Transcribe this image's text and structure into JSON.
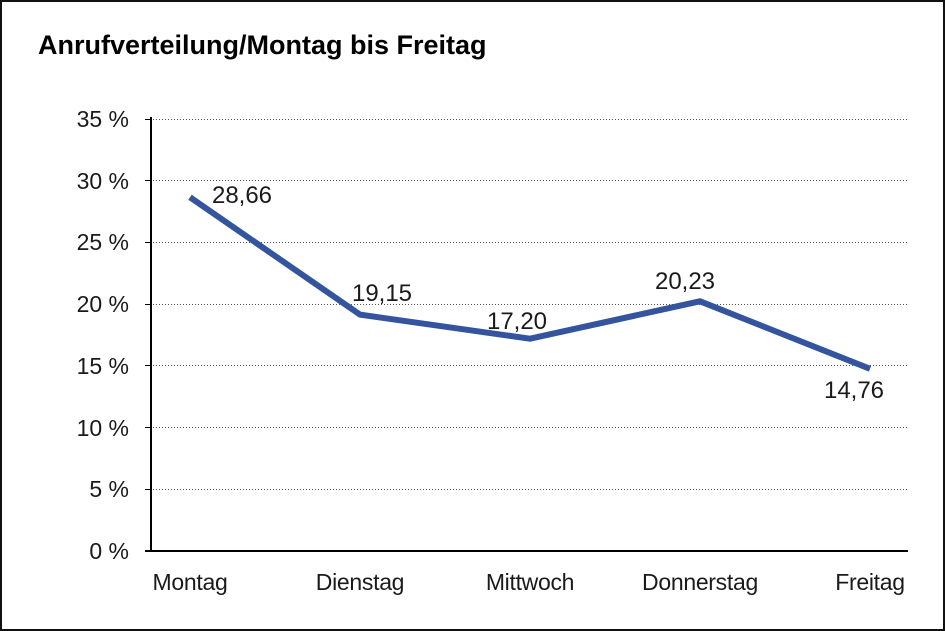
{
  "page": {
    "background": "#ffffff",
    "frame_border_color": "#111111"
  },
  "chart_data": {
    "type": "line",
    "title": "Anrufverteilung/Montag bis Freitag",
    "categories": [
      "Montag",
      "Dienstag",
      "Mittwoch",
      "Donnerstag",
      "Freitag"
    ],
    "series": [
      {
        "name": "Anrufverteilung",
        "values": [
          28.66,
          19.15,
          17.2,
          20.23,
          14.76
        ],
        "data_labels": [
          "28,66",
          "19,15",
          "17,20",
          "20,23",
          "14,76"
        ]
      }
    ],
    "y_ticks": [
      {
        "value": 35,
        "label": "35 %"
      },
      {
        "value": 30,
        "label": "30 %"
      },
      {
        "value": 25,
        "label": "25 %"
      },
      {
        "value": 20,
        "label": "20 %"
      },
      {
        "value": 15,
        "label": "15 %"
      },
      {
        "value": 10,
        "label": "10 %"
      },
      {
        "value": 5,
        "label": "5 %"
      },
      {
        "value": 0,
        "label": "0 %"
      }
    ],
    "ylim": [
      0,
      35
    ],
    "xlabel": "",
    "ylabel": "",
    "grid": "horizontal-dotted",
    "legend": "none",
    "line_color": "#34549E",
    "axis_color": "#000000",
    "grid_color": "#555555",
    "text_color": "#1a1a1a"
  }
}
